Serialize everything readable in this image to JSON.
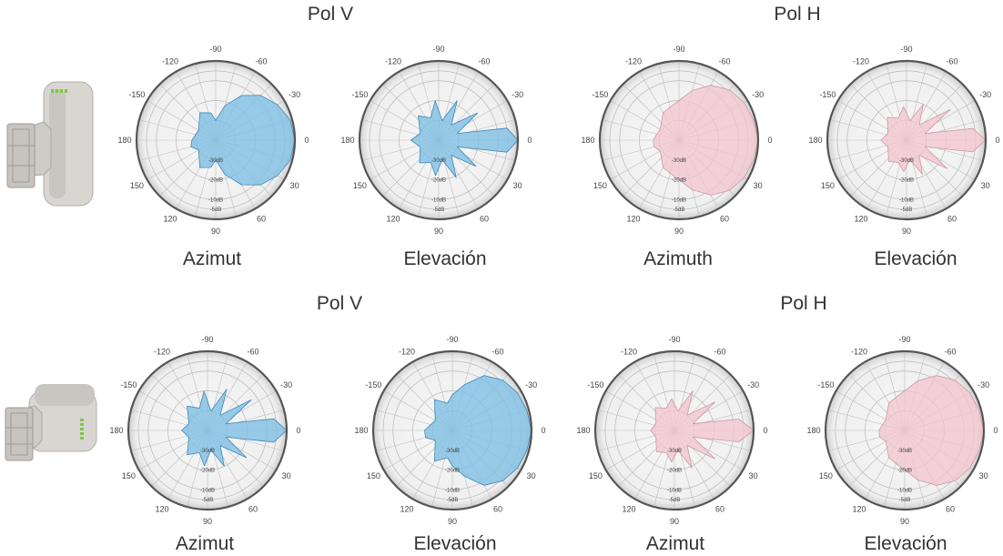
{
  "rows": [
    {
      "pol_v_title": "Pol V",
      "pol_h_title": "Pol H",
      "device": "vertical-mount"
    },
    {
      "pol_v_title": "Pol V",
      "pol_h_title": "Pol H",
      "device": "horizontal-mount"
    }
  ],
  "colors": {
    "pol_v": "#7fbfe4",
    "pol_h": "#f3c4cf",
    "pol_v_stroke": "#3f87b8",
    "pol_h_stroke": "#c99aa6",
    "disk": "#f4f4f4",
    "rim": "#555555"
  },
  "angle_ticks": [
    "-90",
    "-60",
    "-30",
    "0",
    "30",
    "60",
    "90",
    "120",
    "150",
    "180",
    "-150",
    "-120"
  ],
  "radial_ticks": [
    "-30dB",
    "-20dB",
    "-10dB",
    "-5dB"
  ],
  "chart_data": [
    {
      "type": "polar",
      "title": "Pol V",
      "xlabel": "Azimut",
      "series": [
        {
          "name": "Pol V",
          "color": "#7fbfe4",
          "angles": [
            -180,
            -150,
            -120,
            -100,
            -90,
            -75,
            -60,
            -45,
            -30,
            -15,
            0,
            15,
            30,
            45,
            60,
            75,
            90,
            100,
            120,
            150,
            165
          ],
          "values": [
            -28,
            -30,
            -24,
            -26,
            -30,
            -22,
            -14,
            -8,
            -4,
            -1,
            0,
            -1,
            -4,
            -8,
            -14,
            -22,
            -30,
            -26,
            -24,
            -30,
            -27
          ]
        }
      ]
    },
    {
      "type": "polar",
      "title": "Pol V",
      "xlabel": "Elevación",
      "series": [
        {
          "name": "Pol V",
          "color": "#7fbfe4",
          "angles": [
            -180,
            -160,
            -130,
            -110,
            -95,
            -80,
            -65,
            -50,
            -35,
            -20,
            -10,
            0,
            10,
            20,
            35,
            50,
            65,
            80,
            95,
            110,
            130,
            160
          ],
          "values": [
            -26,
            -30,
            -24,
            -28,
            -20,
            -30,
            -18,
            -30,
            -16,
            -30,
            -5,
            0,
            -5,
            -30,
            -17,
            -30,
            -19,
            -30,
            -22,
            -28,
            -25,
            -30
          ]
        }
      ]
    },
    {
      "type": "polar",
      "title": "Pol H",
      "xlabel": "Azimuth",
      "series": [
        {
          "name": "Pol H",
          "color": "#f3c4cf",
          "angles": [
            -180,
            -150,
            -120,
            -100,
            -90,
            -75,
            -60,
            -45,
            -30,
            -15,
            0,
            15,
            30,
            45,
            60,
            75,
            90,
            100,
            120,
            150,
            165
          ],
          "values": [
            -27,
            -29,
            -24,
            -22,
            -20,
            -14,
            -8,
            -4,
            -2,
            -1,
            0,
            -1,
            -2,
            -4,
            -8,
            -14,
            -20,
            -22,
            -24,
            -29,
            -27
          ]
        }
      ]
    },
    {
      "type": "polar",
      "title": "Pol H",
      "xlabel": "Elevación",
      "series": [
        {
          "name": "Pol H",
          "color": "#f3c4cf",
          "angles": [
            -180,
            -160,
            -130,
            -110,
            -95,
            -80,
            -65,
            -50,
            -35,
            -20,
            -10,
            0,
            10,
            20,
            35,
            50,
            65,
            80,
            95,
            110,
            130,
            160
          ],
          "values": [
            -27,
            -30,
            -25,
            -28,
            -23,
            -30,
            -20,
            -30,
            -13,
            -30,
            -6,
            0,
            -6,
            -30,
            -15,
            -30,
            -21,
            -30,
            -24,
            -28,
            -26,
            -30
          ]
        }
      ]
    },
    {
      "type": "polar",
      "title": "Pol V",
      "xlabel": "Azimut",
      "series": [
        {
          "name": "Pol V",
          "color": "#7fbfe4",
          "angles": [
            -180,
            -160,
            -130,
            -110,
            -95,
            -80,
            -65,
            -50,
            -35,
            -20,
            -10,
            0,
            10,
            20,
            35,
            50,
            65,
            80,
            95,
            110,
            130,
            160
          ],
          "values": [
            -27,
            -30,
            -24,
            -28,
            -20,
            -30,
            -17,
            -30,
            -13,
            -30,
            -6,
            0,
            -6,
            -30,
            -16,
            -30,
            -20,
            -30,
            -22,
            -28,
            -24,
            -30
          ]
        }
      ]
    },
    {
      "type": "polar",
      "title": "Pol V",
      "xlabel": "Elevación",
      "series": [
        {
          "name": "Pol V",
          "color": "#7fbfe4",
          "angles": [
            -180,
            -150,
            -120,
            -100,
            -90,
            -75,
            -60,
            -45,
            -30,
            -15,
            0,
            15,
            30,
            45,
            60,
            75,
            90,
            100,
            120,
            150,
            165
          ],
          "values": [
            -26,
            -30,
            -22,
            -26,
            -22,
            -16,
            -8,
            -4,
            -2,
            -1,
            0,
            -1,
            -2,
            -4,
            -8,
            -16,
            -22,
            -26,
            -22,
            -30,
            -26
          ]
        }
      ]
    },
    {
      "type": "polar",
      "title": "Pol H",
      "xlabel": "Azimut",
      "series": [
        {
          "name": "Pol H",
          "color": "#f3c4cf",
          "angles": [
            -180,
            -160,
            -130,
            -110,
            -95,
            -80,
            -65,
            -50,
            -35,
            -20,
            -10,
            0,
            10,
            20,
            35,
            50,
            65,
            80,
            95,
            110,
            130,
            160
          ],
          "values": [
            -28,
            -30,
            -25,
            -28,
            -24,
            -30,
            -18,
            -30,
            -15,
            -30,
            -7,
            0,
            -7,
            -30,
            -15,
            -30,
            -19,
            -30,
            -24,
            -28,
            -26,
            -30
          ]
        }
      ]
    },
    {
      "type": "polar",
      "title": "Pol H",
      "xlabel": "Elevación",
      "series": [
        {
          "name": "Pol H",
          "color": "#f3c4cf",
          "angles": [
            -180,
            -150,
            -120,
            -100,
            -90,
            -75,
            -60,
            -45,
            -30,
            -15,
            0,
            15,
            30,
            45,
            60,
            75,
            90,
            100,
            120,
            150,
            165
          ],
          "values": [
            -27,
            -29,
            -24,
            -22,
            -20,
            -14,
            -8,
            -4,
            -2,
            -1,
            0,
            -1,
            -2,
            -4,
            -8,
            -14,
            -20,
            -22,
            -24,
            -29,
            -27
          ]
        }
      ]
    }
  ]
}
